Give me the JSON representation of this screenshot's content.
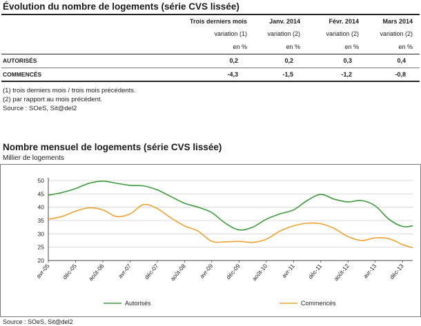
{
  "table": {
    "title": "Évolution du nombre de logements (série CVS lissée)",
    "columns": [
      {
        "header": "Trois derniers mois",
        "sub1": "variation (1)",
        "sub2": "en %"
      },
      {
        "header": "Janv. 2014",
        "sub1": "variation (2)",
        "sub2": "en %"
      },
      {
        "header": "Févr. 2014",
        "sub1": "variation (2)",
        "sub2": "en %"
      },
      {
        "header": "Mars 2014",
        "sub1": "variation (2)",
        "sub2": "en %"
      }
    ],
    "rows": [
      {
        "label": "AUTORISÉS",
        "values": [
          "0,2",
          "0,2",
          "0,3",
          "0,4"
        ]
      },
      {
        "label": "COMMENCÉS",
        "values": [
          "-4,3",
          "-1,5",
          "-1,2",
          "-0,8"
        ]
      }
    ],
    "notes": [
      "(1) trois derniers mois / trois mois précédents.",
      "(2) par rapport au mois précédent.",
      "Source : SOeS, Sit@del2"
    ]
  },
  "chart_title": "Nombre mensuel de logements (série CVS lissée)",
  "chart_source": "Source : SOeS, Sit@del2",
  "chart_data": {
    "type": "line",
    "title": "Nombre mensuel de logements (série CVS lissée)",
    "ylabel": "Millier de logements",
    "xlabel": "",
    "ylim": [
      20,
      50
    ],
    "yticks": [
      20,
      25,
      30,
      35,
      40,
      45,
      50
    ],
    "x_start": "2005-04",
    "x_end": "2014-03",
    "xtick_labels": [
      {
        "label": "avr-05",
        "date": "2005-04"
      },
      {
        "label": "déc-05",
        "date": "2005-12"
      },
      {
        "label": "août-06",
        "date": "2006-08"
      },
      {
        "label": "avr-07",
        "date": "2007-04"
      },
      {
        "label": "déc-07",
        "date": "2007-12"
      },
      {
        "label": "août-08",
        "date": "2008-08"
      },
      {
        "label": "avr-09",
        "date": "2009-04"
      },
      {
        "label": "déc-09",
        "date": "2009-12"
      },
      {
        "label": "août-10",
        "date": "2010-08"
      },
      {
        "label": "avr-11",
        "date": "2011-04"
      },
      {
        "label": "déc-11",
        "date": "2011-12"
      },
      {
        "label": "août-12",
        "date": "2012-08"
      },
      {
        "label": "avr-13",
        "date": "2013-04"
      },
      {
        "label": "déc-13",
        "date": "2013-12"
      }
    ],
    "grid": "horizontal",
    "legend": "bottom",
    "series": [
      {
        "name": "Autorisés",
        "color": "#3a9a3a",
        "points": [
          [
            "2005-04",
            44.5
          ],
          [
            "2005-08",
            45.5
          ],
          [
            "2005-12",
            47.0
          ],
          [
            "2006-04",
            49.0
          ],
          [
            "2006-08",
            49.8
          ],
          [
            "2006-12",
            49.0
          ],
          [
            "2007-04",
            48.2
          ],
          [
            "2007-08",
            48.0
          ],
          [
            "2007-12",
            46.5
          ],
          [
            "2008-04",
            44.0
          ],
          [
            "2008-08",
            41.5
          ],
          [
            "2008-12",
            40.0
          ],
          [
            "2009-04",
            38.0
          ],
          [
            "2009-08",
            34.0
          ],
          [
            "2009-12",
            31.5
          ],
          [
            "2010-04",
            32.5
          ],
          [
            "2010-08",
            35.5
          ],
          [
            "2010-12",
            37.5
          ],
          [
            "2011-04",
            39.0
          ],
          [
            "2011-08",
            42.5
          ],
          [
            "2011-12",
            44.8
          ],
          [
            "2012-04",
            43.0
          ],
          [
            "2012-08",
            42.0
          ],
          [
            "2012-12",
            42.5
          ],
          [
            "2013-04",
            40.5
          ],
          [
            "2013-08",
            35.5
          ],
          [
            "2013-12",
            32.8
          ],
          [
            "2014-03",
            33.0
          ]
        ]
      },
      {
        "name": "Commencés",
        "color": "#f0a030",
        "points": [
          [
            "2005-04",
            35.5
          ],
          [
            "2005-08",
            36.5
          ],
          [
            "2005-12",
            38.5
          ],
          [
            "2006-04",
            39.8
          ],
          [
            "2006-08",
            39.0
          ],
          [
            "2006-12",
            36.5
          ],
          [
            "2007-04",
            37.5
          ],
          [
            "2007-08",
            41.0
          ],
          [
            "2007-12",
            39.5
          ],
          [
            "2008-04",
            36.0
          ],
          [
            "2008-08",
            33.0
          ],
          [
            "2008-12",
            31.0
          ],
          [
            "2009-04",
            27.2
          ],
          [
            "2009-08",
            27.0
          ],
          [
            "2009-12",
            27.2
          ],
          [
            "2010-04",
            26.8
          ],
          [
            "2010-08",
            28.0
          ],
          [
            "2010-12",
            31.0
          ],
          [
            "2011-04",
            33.0
          ],
          [
            "2011-08",
            34.0
          ],
          [
            "2011-12",
            33.8
          ],
          [
            "2012-04",
            32.0
          ],
          [
            "2012-08",
            29.0
          ],
          [
            "2012-12",
            27.5
          ],
          [
            "2013-04",
            28.5
          ],
          [
            "2013-08",
            28.2
          ],
          [
            "2013-12",
            26.0
          ],
          [
            "2014-03",
            24.8
          ]
        ]
      }
    ]
  }
}
